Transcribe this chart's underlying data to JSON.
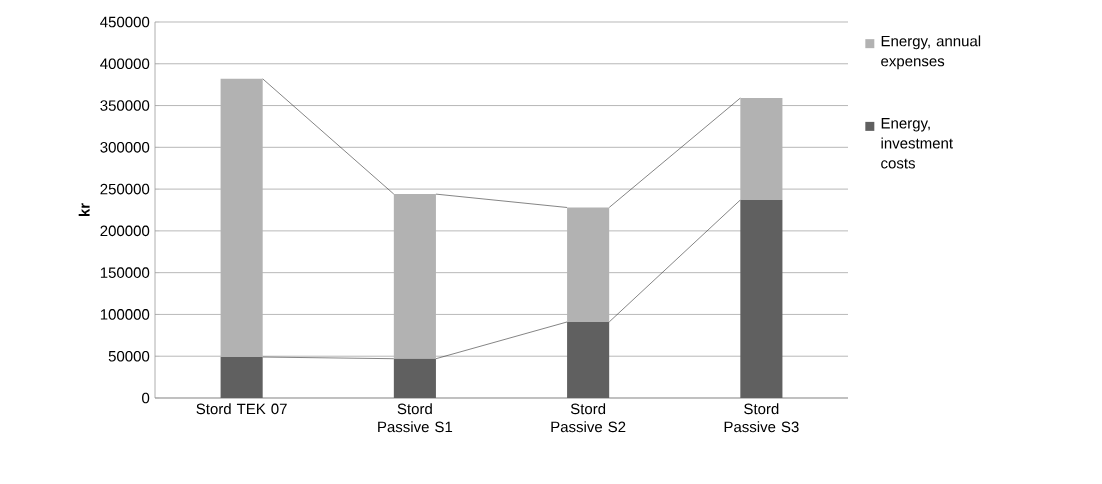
{
  "chart_data": {
    "type": "bar",
    "stacked": true,
    "categories": [
      "Stord TEK 07",
      "Stord Passive S1",
      "Stord Passive S2",
      "Stord Passive S3"
    ],
    "series": [
      {
        "name": "Energy, investment costs",
        "color": "#606060",
        "values": [
          49000,
          47000,
          91000,
          237000
        ]
      },
      {
        "name": "Energy, annual expenses",
        "color": "#b2b2b2",
        "values": [
          333000,
          197000,
          137000,
          122000
        ]
      }
    ],
    "ylabel": "kr",
    "ylim": [
      0,
      450000
    ],
    "yticks": [
      0,
      50000,
      100000,
      150000,
      200000,
      250000,
      300000,
      350000,
      400000,
      450000
    ],
    "grid": "y",
    "legend": "right"
  }
}
